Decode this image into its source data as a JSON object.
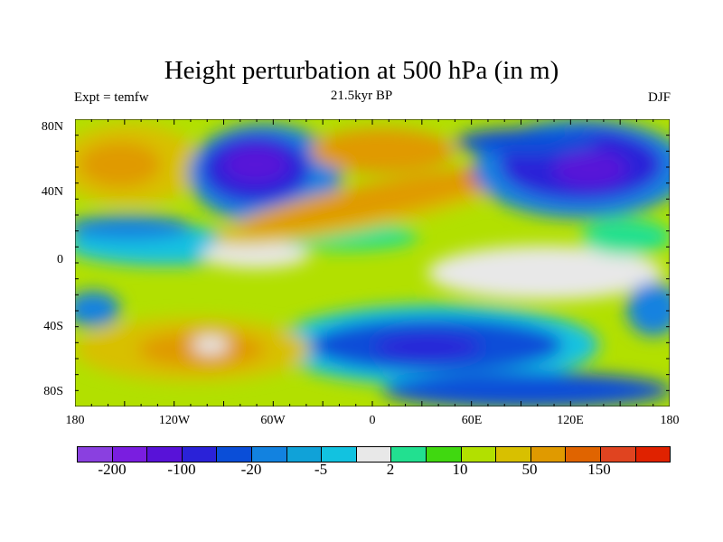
{
  "title": "Height perturbation at 500 hPa (in m)",
  "subtitle_left": "Expt = temfw",
  "subtitle_center": "21.5kyr BP",
  "subtitle_right": "DJF",
  "lat_labels": [
    "80N",
    "40N",
    "0",
    "40S",
    "80S"
  ],
  "lon_labels": [
    "180",
    "120W",
    "60W",
    "0",
    "60E",
    "120E",
    "180"
  ],
  "colorbar": {
    "labels": [
      "-200",
      "-100",
      "-20",
      "-5",
      "2",
      "10",
      "50",
      "150"
    ],
    "colors": [
      "#8a40e0",
      "#7a1ee0",
      "#5812d8",
      "#2a22d8",
      "#0a4ed8",
      "#1282e0",
      "#10a2d8",
      "#12c2e0",
      "#e8e8e8",
      "#22e090",
      "#40d810",
      "#b2e000",
      "#d8c000",
      "#e09a00",
      "#e06400",
      "#e04420",
      "#e02200"
    ]
  }
}
